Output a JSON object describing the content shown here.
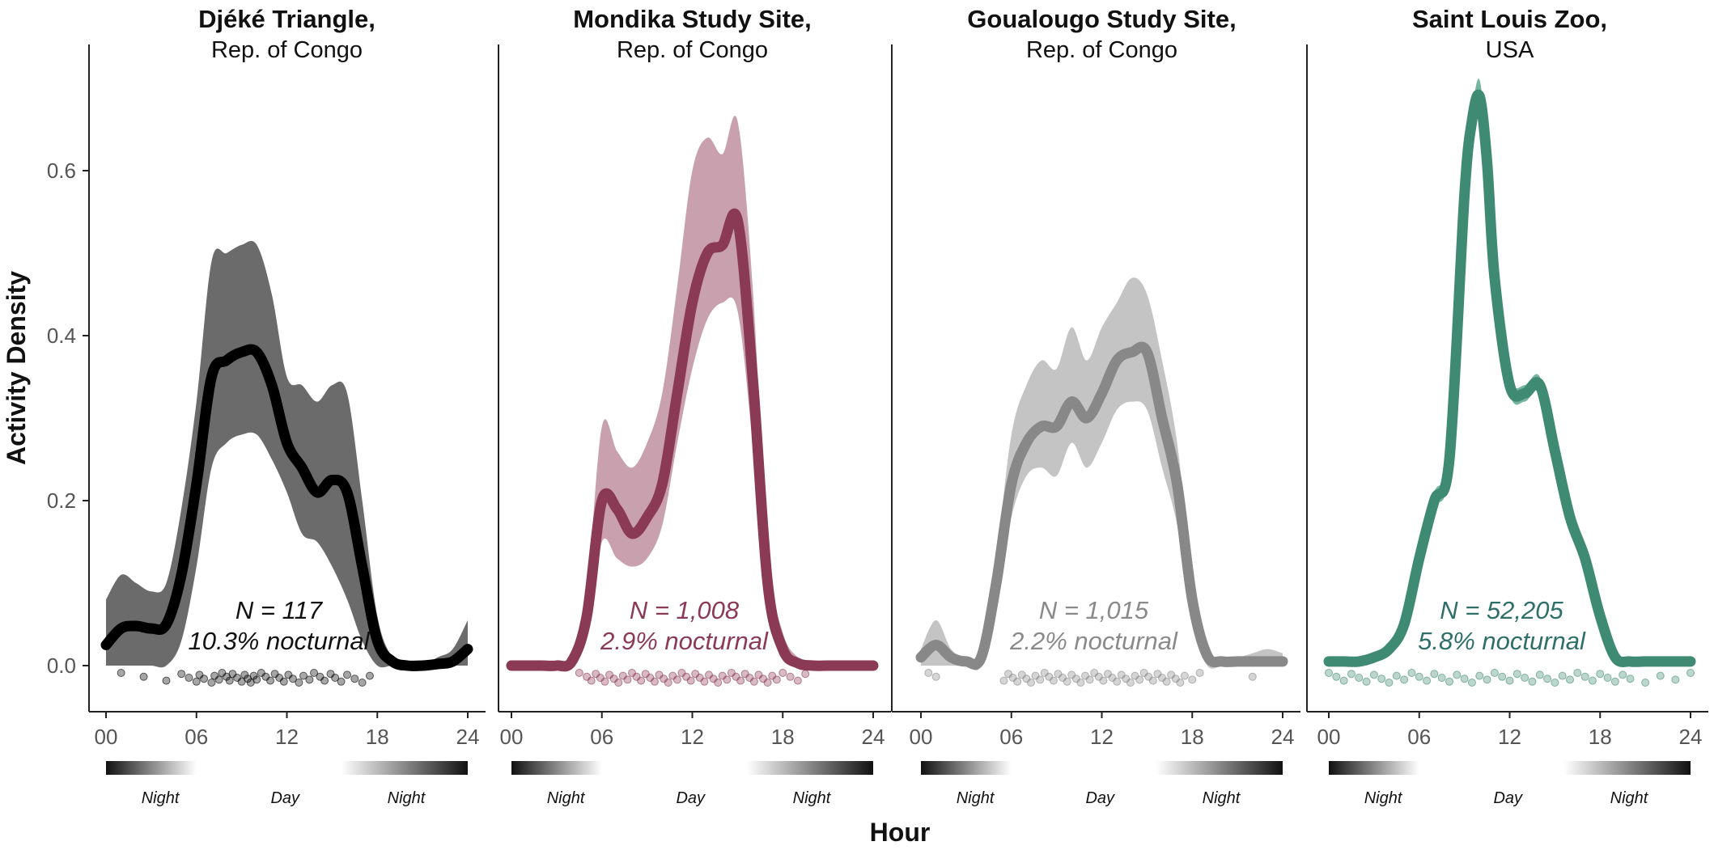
{
  "figure": {
    "x_axis_title": "Hour",
    "y_axis_title": "Activity Density"
  },
  "chart_data": [
    {
      "type": "area",
      "title": "Djéké Triangle,",
      "subtitle": "Rep. of Congo",
      "xlabel": "Hour",
      "ylabel": "Activity Density",
      "xlim": [
        0,
        24
      ],
      "ylim": [
        -0.05,
        0.75
      ],
      "xticks": [
        "00",
        "06",
        "12",
        "18",
        "24"
      ],
      "yticks": [
        "0.0",
        "0.2",
        "0.4",
        "0.6"
      ],
      "color": "#000000",
      "band_color": "#6b6b6b",
      "band_opacity": 1,
      "annotation": [
        "N = 117",
        "10.3% nocturnal"
      ],
      "annotation_color": "#111111",
      "daynight_labels": [
        "Night",
        "Day",
        "Night"
      ],
      "x": [
        0,
        1,
        2,
        3,
        4,
        5,
        6,
        7,
        8,
        9,
        10,
        11,
        12,
        13,
        14,
        15,
        16,
        17,
        18,
        19,
        20,
        21,
        22,
        23,
        24
      ],
      "y": [
        0.025,
        0.045,
        0.048,
        0.045,
        0.05,
        0.11,
        0.22,
        0.35,
        0.37,
        0.38,
        0.38,
        0.34,
        0.27,
        0.24,
        0.21,
        0.225,
        0.21,
        0.12,
        0.03,
        0.005,
        0.0,
        0.0,
        0.002,
        0.005,
        0.02
      ],
      "lower": [
        0.0,
        0.0,
        0.0,
        0.0,
        0.0,
        0.03,
        0.12,
        0.24,
        0.27,
        0.28,
        0.28,
        0.25,
        0.21,
        0.16,
        0.15,
        0.12,
        0.08,
        0.03,
        0.0,
        0.0,
        0.0,
        0.0,
        0.0,
        0.0,
        0.0
      ],
      "upper": [
        0.08,
        0.11,
        0.1,
        0.09,
        0.1,
        0.19,
        0.32,
        0.49,
        0.5,
        0.51,
        0.51,
        0.45,
        0.35,
        0.34,
        0.32,
        0.34,
        0.33,
        0.2,
        0.06,
        0.01,
        0.0,
        0.0,
        0.01,
        0.02,
        0.055
      ],
      "rug_hours": [
        1,
        2.5,
        4,
        5,
        5.5,
        6,
        6.2,
        6.5,
        7,
        7.2,
        7.5,
        7.7,
        8,
        8.2,
        8.4,
        8.7,
        9,
        9.2,
        9.4,
        9.6,
        9.8,
        10,
        10.3,
        10.6,
        10.9,
        11.2,
        11.5,
        11.8,
        12.1,
        12.4,
        12.8,
        13.1,
        13.5,
        13.8,
        14.2,
        14.5,
        14.9,
        15.2,
        15.6,
        16,
        16.5,
        17,
        17.5
      ]
    },
    {
      "type": "area",
      "title": "Mondika Study Site,",
      "subtitle": "Rep. of Congo",
      "xlabel": "Hour",
      "ylabel": "",
      "xlim": [
        0,
        24
      ],
      "ylim": [
        -0.05,
        0.75
      ],
      "xticks": [
        "00",
        "06",
        "12",
        "18",
        "24"
      ],
      "color": "#8b3a55",
      "band_color": "#c9a0ad",
      "band_opacity": 1,
      "annotation": [
        "N = 1,008",
        "2.9% nocturnal"
      ],
      "annotation_color": "#8b3a55",
      "daynight_labels": [
        "Night",
        "Day",
        "Night"
      ],
      "x": [
        0,
        1,
        2,
        3,
        4,
        5,
        6,
        7,
        8,
        9,
        10,
        11,
        12,
        13,
        14,
        15,
        16,
        17,
        18,
        19,
        20,
        21,
        22,
        23,
        24
      ],
      "y": [
        0.0,
        0.0,
        0.0,
        0.0,
        0.005,
        0.06,
        0.2,
        0.19,
        0.16,
        0.18,
        0.22,
        0.33,
        0.44,
        0.5,
        0.51,
        0.54,
        0.35,
        0.1,
        0.02,
        0.003,
        0.0,
        0.0,
        0.0,
        0.0,
        0.0
      ],
      "lower": [
        0.0,
        0.0,
        0.0,
        0.0,
        0.0,
        0.04,
        0.15,
        0.13,
        0.12,
        0.13,
        0.17,
        0.27,
        0.36,
        0.42,
        0.44,
        0.43,
        0.27,
        0.07,
        0.01,
        0.0,
        0.0,
        0.0,
        0.0,
        0.0,
        0.0
      ],
      "upper": [
        0.0,
        0.0,
        0.0,
        0.0,
        0.01,
        0.09,
        0.29,
        0.26,
        0.24,
        0.27,
        0.33,
        0.46,
        0.6,
        0.64,
        0.62,
        0.66,
        0.46,
        0.14,
        0.04,
        0.01,
        0.0,
        0.0,
        0.0,
        0.0,
        0.0
      ],
      "rug_hours": [
        4.5,
        5,
        5.3,
        5.6,
        5.9,
        6.2,
        6.5,
        6.8,
        7.1,
        7.4,
        7.7,
        8,
        8.3,
        8.6,
        8.9,
        9.2,
        9.5,
        9.8,
        10.1,
        10.4,
        10.7,
        11,
        11.3,
        11.6,
        11.9,
        12.2,
        12.5,
        12.8,
        13.1,
        13.4,
        13.7,
        14,
        14.3,
        14.6,
        14.9,
        15.2,
        15.5,
        15.8,
        16.1,
        16.4,
        16.7,
        17,
        17.3,
        17.6,
        18,
        18.5,
        19,
        19.5
      ]
    },
    {
      "type": "area",
      "title": "Goualougo Study Site,",
      "subtitle": "Rep. of Congo",
      "xlabel": "Hour",
      "ylabel": "",
      "xlim": [
        0,
        24
      ],
      "ylim": [
        -0.05,
        0.75
      ],
      "xticks": [
        "00",
        "06",
        "12",
        "18",
        "24"
      ],
      "color": "#888888",
      "band_color": "#c4c4c4",
      "band_opacity": 1,
      "annotation": [
        "N = 1,015",
        "2.2% nocturnal"
      ],
      "annotation_color": "#8a8a8a",
      "daynight_labels": [
        "Night",
        "Day",
        "Night"
      ],
      "x": [
        0,
        1,
        2,
        3,
        4,
        5,
        6,
        7,
        8,
        9,
        10,
        11,
        12,
        13,
        14,
        15,
        16,
        17,
        18,
        19,
        20,
        21,
        22,
        23,
        24
      ],
      "y": [
        0.01,
        0.025,
        0.01,
        0.005,
        0.01,
        0.1,
        0.22,
        0.27,
        0.29,
        0.29,
        0.32,
        0.3,
        0.33,
        0.37,
        0.38,
        0.38,
        0.3,
        0.22,
        0.08,
        0.012,
        0.005,
        0.005,
        0.005,
        0.005,
        0.005
      ],
      "lower": [
        0.0,
        0.0,
        0.0,
        0.0,
        0.0,
        0.08,
        0.18,
        0.23,
        0.24,
        0.23,
        0.27,
        0.24,
        0.27,
        0.31,
        0.32,
        0.31,
        0.24,
        0.17,
        0.05,
        0.0,
        0.0,
        0.0,
        0.0,
        0.0,
        0.0
      ],
      "upper": [
        0.02,
        0.055,
        0.02,
        0.01,
        0.02,
        0.13,
        0.28,
        0.34,
        0.37,
        0.36,
        0.41,
        0.37,
        0.41,
        0.44,
        0.47,
        0.45,
        0.37,
        0.27,
        0.11,
        0.02,
        0.01,
        0.01,
        0.015,
        0.02,
        0.015
      ],
      "rug_hours": [
        0.5,
        1,
        5.5,
        5.8,
        6.1,
        6.4,
        6.7,
        7,
        7.3,
        7.6,
        7.9,
        8.2,
        8.5,
        8.8,
        9.1,
        9.4,
        9.7,
        10,
        10.3,
        10.6,
        10.9,
        11.2,
        11.5,
        11.8,
        12.1,
        12.4,
        12.7,
        13,
        13.3,
        13.6,
        13.9,
        14.2,
        14.5,
        14.8,
        15.1,
        15.4,
        15.7,
        16,
        16.3,
        16.6,
        16.9,
        17.2,
        17.5,
        18,
        18.5,
        22
      ]
    },
    {
      "type": "area",
      "title": "Saint Louis Zoo,",
      "subtitle": "USA",
      "xlabel": "Hour",
      "ylabel": "",
      "xlim": [
        0,
        24
      ],
      "ylim": [
        -0.05,
        0.75
      ],
      "xticks": [
        "00",
        "06",
        "12",
        "18",
        "24"
      ],
      "color": "#3f8a72",
      "band_color": "#76b5a1",
      "band_opacity": 1,
      "annotation": [
        "N = 52,205",
        "5.8% nocturnal"
      ],
      "annotation_color": "#2f6f6a",
      "daynight_labels": [
        "Night",
        "Day",
        "Night"
      ],
      "x": [
        0,
        1,
        2,
        3,
        4,
        5,
        6,
        7,
        8,
        9,
        9.5,
        10,
        10.5,
        11,
        12,
        13,
        14,
        15,
        16,
        17,
        18,
        19,
        20,
        21,
        22,
        23,
        24
      ],
      "y": [
        0.005,
        0.005,
        0.005,
        0.01,
        0.02,
        0.05,
        0.13,
        0.2,
        0.25,
        0.57,
        0.66,
        0.69,
        0.61,
        0.47,
        0.34,
        0.33,
        0.34,
        0.26,
        0.18,
        0.13,
        0.06,
        0.01,
        0.005,
        0.005,
        0.005,
        0.005,
        0.005
      ],
      "lower": [
        0.0,
        0.0,
        0.0,
        0.005,
        0.015,
        0.045,
        0.12,
        0.19,
        0.24,
        0.56,
        0.65,
        0.68,
        0.6,
        0.46,
        0.33,
        0.32,
        0.33,
        0.25,
        0.17,
        0.12,
        0.055,
        0.005,
        0.0,
        0.0,
        0.0,
        0.0,
        0.0
      ],
      "upper": [
        0.01,
        0.01,
        0.01,
        0.015,
        0.025,
        0.055,
        0.14,
        0.21,
        0.26,
        0.58,
        0.67,
        0.71,
        0.62,
        0.48,
        0.35,
        0.34,
        0.35,
        0.27,
        0.19,
        0.14,
        0.065,
        0.015,
        0.01,
        0.01,
        0.01,
        0.01,
        0.01
      ],
      "rug_hours": [
        0,
        0.5,
        1,
        1.5,
        2,
        2.5,
        3,
        3.5,
        4,
        4.5,
        5,
        5.5,
        6,
        6.5,
        7,
        7.5,
        8,
        8.5,
        9,
        9.5,
        10,
        10.5,
        11,
        11.5,
        12,
        12.5,
        13,
        13.5,
        14,
        14.5,
        15,
        15.5,
        16,
        16.5,
        17,
        17.5,
        18,
        18.5,
        19,
        19.5,
        20,
        21,
        22,
        23,
        24
      ]
    }
  ]
}
